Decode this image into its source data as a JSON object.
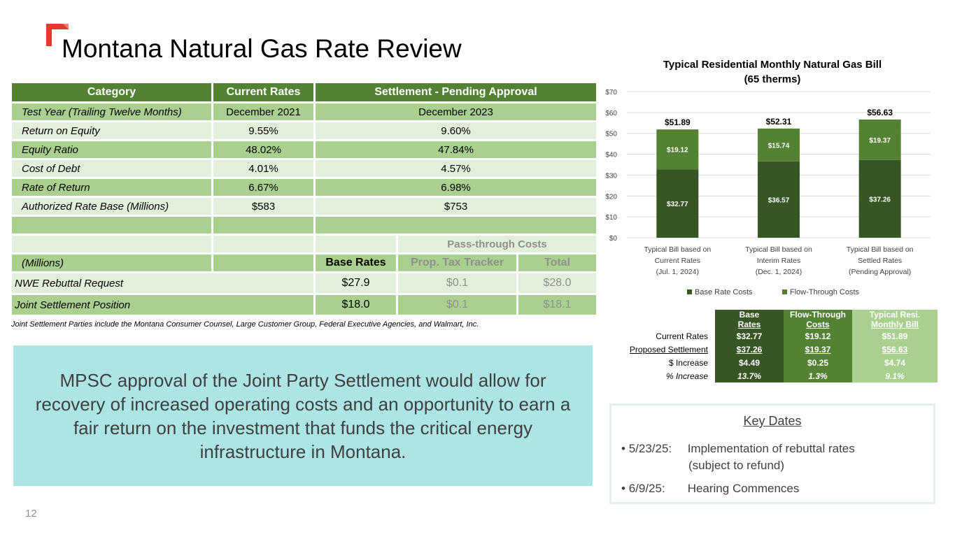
{
  "title": "Montana Natural Gas Rate Review",
  "rate_table": {
    "headers": [
      "Category",
      "Current Rates",
      "Settlement - Pending Approval"
    ],
    "rows": [
      {
        "label": "Test Year (Trailing Twelve Months)",
        "current": "December 2021",
        "settlement": "December 2023"
      },
      {
        "label": "Return on Equity",
        "current": "9.55%",
        "settlement": "9.60%"
      },
      {
        "label": "Equity Ratio",
        "current": "48.02%",
        "settlement": "47.84%"
      },
      {
        "label": "Cost of Debt",
        "current": "4.01%",
        "settlement": "4.57%"
      },
      {
        "label": "Rate of Return",
        "current": "6.67%",
        "settlement": "6.98%"
      },
      {
        "label": "Authorized Rate Base (Millions)",
        "current": "$583",
        "settlement": "$753"
      }
    ],
    "pass_through_header": "Pass-through Costs",
    "millions_label": "(Millions)",
    "sub_headers": [
      "Base Rates",
      "Prop. Tax Tracker",
      "Total"
    ],
    "requests": [
      {
        "label": "NWE Rebuttal Request",
        "base": "$27.9",
        "tax": "$0.1",
        "total": "$28.0"
      },
      {
        "label": "Joint Settlement Position",
        "base": "$18.0",
        "tax": "$0.1",
        "total": "$18.1"
      }
    ],
    "footnote": "Joint Settlement Parties include the Montana Consumer Counsel, Large Customer Group, Federal Executive Agencies, and Walmart, Inc."
  },
  "callout": "MPSC approval of the Joint Party Settlement would allow for recovery of increased operating costs and an opportunity to earn a fair return on the investment that funds the critical energy infrastructure in Montana.",
  "page_number": "12",
  "chart_data": {
    "type": "bar",
    "stacked": true,
    "title": "Typical Residential Monthly Natural Gas Bill",
    "subtitle": "(65 therms)",
    "categories": [
      [
        "Typical Bill based on",
        "Current Rates",
        "(Jul. 1, 2024)"
      ],
      [
        "Typical Bill based on",
        "Interim Rates",
        "(Dec. 1, 2024)"
      ],
      [
        "Typical Bill based on",
        "Settled Rates",
        "(Pending Approval)"
      ]
    ],
    "series": [
      {
        "name": "Base Rate Costs",
        "values": [
          32.77,
          36.57,
          37.26
        ],
        "labels": [
          "$32.77",
          "$36.57",
          "$37.26"
        ],
        "color": "#375623"
      },
      {
        "name": "Flow-Through Costs",
        "values": [
          19.12,
          15.74,
          19.37
        ],
        "labels": [
          "$19.12",
          "$15.74",
          "$19.37"
        ],
        "color": "#548235"
      }
    ],
    "totals": [
      "$51.89",
      "$52.31",
      "$56.63"
    ],
    "yticks": [
      "$0",
      "$10",
      "$20",
      "$30",
      "$40",
      "$50",
      "$60",
      "$70"
    ],
    "ylim": [
      0,
      70
    ],
    "grid": true,
    "legend": "bottom"
  },
  "summary_table": {
    "headers": [
      [
        "Base",
        "Rates"
      ],
      [
        "Flow-Through",
        "Costs"
      ],
      [
        "Typical Resi.",
        "Monthly Bill"
      ]
    ],
    "rows": [
      {
        "label": "Current Rates",
        "values": [
          "$32.77",
          "$19.12",
          "$51.89"
        ]
      },
      {
        "label": "Proposed Settlement",
        "values": [
          "$37.26",
          "$19.37",
          "$56.63"
        ]
      },
      {
        "label": "$ Increase",
        "values": [
          "$4.49",
          "$0.25",
          "$4.74"
        ]
      },
      {
        "label": "% Increase",
        "values": [
          "13.7%",
          "1.3%",
          "9.1%"
        ]
      }
    ]
  },
  "key_dates": {
    "title": "Key Dates",
    "items": [
      {
        "date": "5/23/25:",
        "text": "Implementation of rebuttal rates",
        "sub": "(subject to refund)"
      },
      {
        "date": "6/9/25:",
        "text": "Hearing Commences"
      }
    ]
  }
}
